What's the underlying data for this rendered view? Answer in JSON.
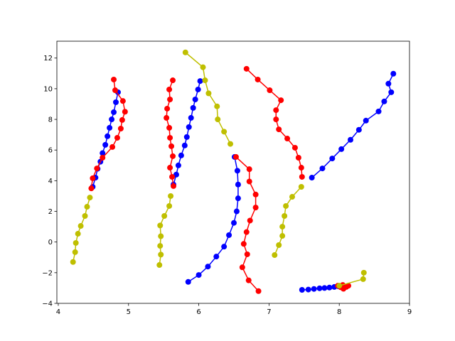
{
  "chart_data": {
    "type": "line",
    "xlim": [
      3.98,
      9.0
    ],
    "ylim": [
      -4,
      13.1
    ],
    "xticks": [
      4,
      5,
      6,
      7,
      8,
      9
    ],
    "yticks": [
      {
        "value": -4,
        "label": "−4"
      },
      {
        "value": -2,
        "label": "−2"
      },
      0,
      2,
      4,
      6,
      8,
      10,
      12
    ],
    "series": [
      {
        "color": "#0000ff",
        "x": [
          4.85,
          4.82,
          4.79,
          4.76,
          4.73,
          4.7,
          4.67,
          4.63,
          4.6,
          4.56,
          4.53,
          4.49
        ],
        "values": [
          9.77,
          9.12,
          8.47,
          8.0,
          7.45,
          6.9,
          6.34,
          5.8,
          5.24,
          4.78,
          4.2,
          3.6
        ]
      },
      {
        "color": "#ff0000",
        "x": [
          4.79,
          4.81,
          4.92,
          4.95,
          4.91,
          4.89,
          4.84,
          4.77,
          4.63,
          4.55,
          4.49,
          4.47
        ],
        "values": [
          10.6,
          9.9,
          9.2,
          8.5,
          7.96,
          7.4,
          6.8,
          6.2,
          5.5,
          4.8,
          4.16,
          3.5
        ]
      },
      {
        "color": "#bfbf00",
        "x": [
          4.45,
          4.41,
          4.38,
          4.32,
          4.28,
          4.25,
          4.24,
          4.21
        ],
        "values": [
          2.9,
          2.3,
          1.7,
          1.05,
          0.54,
          -0.06,
          -0.66,
          -1.3
        ]
      },
      {
        "color": "#0000ff",
        "x": [
          6.02,
          5.99,
          5.95,
          5.92,
          5.89,
          5.86,
          5.83,
          5.8,
          5.75,
          5.71,
          5.68,
          5.64
        ],
        "values": [
          10.5,
          9.95,
          9.3,
          8.75,
          8.1,
          7.5,
          6.85,
          6.3,
          5.65,
          5.0,
          4.4,
          3.75
        ]
      },
      {
        "color": "#ff0000",
        "x": [
          5.63,
          5.58,
          5.59,
          5.55,
          5.54,
          5.58,
          5.59,
          5.61,
          5.63,
          5.59,
          5.62,
          5.64
        ],
        "values": [
          10.55,
          9.95,
          9.3,
          8.7,
          8.1,
          7.45,
          6.8,
          6.25,
          5.6,
          4.85,
          4.25,
          3.65
        ]
      },
      {
        "color": "#bfbf00",
        "x": [
          5.6,
          5.58,
          5.51,
          5.45,
          5.46,
          5.45,
          5.46,
          5.44
        ],
        "values": [
          3.0,
          2.35,
          1.7,
          1.08,
          0.38,
          -0.25,
          -0.82,
          -1.5
        ]
      },
      {
        "color": "#bfbf00",
        "x": [
          5.81,
          6.06,
          6.09,
          6.14,
          6.26,
          6.27,
          6.36,
          6.45
        ],
        "values": [
          12.37,
          11.4,
          10.55,
          9.7,
          8.85,
          8.0,
          7.2,
          6.4
        ]
      },
      {
        "color": "#0000ff",
        "x": [
          6.51,
          6.55,
          6.56,
          6.56,
          6.54,
          6.5,
          6.43,
          6.36,
          6.25,
          6.13,
          6.0,
          5.85
        ],
        "values": [
          5.55,
          4.65,
          3.75,
          2.85,
          2.0,
          1.25,
          0.45,
          -0.3,
          -0.95,
          -1.6,
          -2.15,
          -2.6
        ]
      },
      {
        "color": "#ff0000",
        "x": [
          6.53,
          6.72,
          6.72,
          6.81,
          6.81,
          6.73,
          6.68,
          6.64,
          6.69,
          6.62,
          6.71,
          6.85
        ],
        "values": [
          5.55,
          4.75,
          3.95,
          3.1,
          2.25,
          1.4,
          0.65,
          -0.12,
          -0.8,
          -1.65,
          -2.5,
          -3.2
        ]
      },
      {
        "color": "#ff0000",
        "x": [
          6.68,
          6.84,
          7.01,
          7.17,
          7.1,
          7.1,
          7.14,
          7.26,
          7.37,
          7.42,
          7.46,
          7.47
        ],
        "values": [
          11.3,
          10.6,
          9.9,
          9.25,
          8.6,
          8.0,
          7.35,
          6.75,
          6.15,
          5.5,
          4.85,
          4.25
        ]
      },
      {
        "color": "#bfbf00",
        "x": [
          7.46,
          7.33,
          7.24,
          7.22,
          7.19,
          7.19,
          7.14,
          7.08
        ],
        "values": [
          3.6,
          2.95,
          2.35,
          1.7,
          1.0,
          0.4,
          -0.2,
          -0.85
        ]
      },
      {
        "color": "#0000ff",
        "x": [
          7.61,
          7.76,
          7.9,
          8.03,
          8.16,
          8.28,
          8.38,
          8.56,
          8.64,
          8.74,
          8.7,
          8.77
        ],
        "values": [
          4.2,
          4.8,
          5.45,
          6.06,
          6.67,
          7.32,
          7.92,
          8.52,
          9.17,
          9.77,
          10.33,
          10.98
        ]
      },
      {
        "color": "#0000ff",
        "x": [
          7.47,
          7.56,
          7.64,
          7.72,
          7.79,
          7.86,
          7.93,
          7.99
        ],
        "values": [
          -3.12,
          -3.1,
          -3.06,
          -3.02,
          -3.0,
          -2.97,
          -2.93,
          -2.89
        ]
      },
      {
        "color": "#ff0000",
        "x": [
          7.98,
          8.02,
          8.06,
          8.1,
          8.13,
          8.05
        ],
        "values": [
          -2.85,
          -2.95,
          -3.05,
          -2.93,
          -2.85,
          -2.8
        ]
      },
      {
        "color": "#bfbf00",
        "x": [
          8.0,
          8.34,
          8.35
        ],
        "values": [
          -2.85,
          -2.42,
          -2.0
        ]
      }
    ]
  }
}
